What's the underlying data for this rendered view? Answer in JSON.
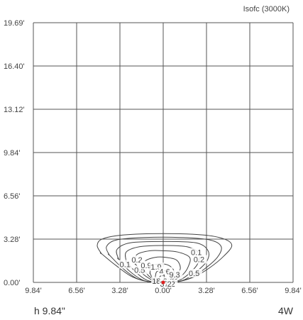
{
  "chart_data": {
    "type": "contour",
    "title": "Isofc (3000K)",
    "x_ticks": [
      "9.84'",
      "6.56'",
      "3.28'",
      "0.00'",
      "3.28'",
      "6.56'",
      "9.84'"
    ],
    "y_ticks": [
      "0.00'",
      "3.28'",
      "6.56'",
      "9.84'",
      "13.12'",
      "16.40'",
      "19.69'"
    ],
    "xlim": [
      -9.84,
      9.84
    ],
    "ylim": [
      0,
      19.69
    ],
    "grid": true,
    "contours": [
      {
        "label": "0.1",
        "level": 0.1,
        "points": [
          [
            -4.7,
            2.2
          ],
          [
            -5.0,
            2.8
          ],
          [
            -4.6,
            3.3
          ],
          [
            -3.0,
            3.6
          ],
          [
            0,
            3.7
          ],
          [
            3.0,
            3.6
          ],
          [
            4.6,
            3.3
          ],
          [
            5.2,
            2.8
          ],
          [
            4.6,
            2.0
          ],
          [
            3.5,
            1.1
          ],
          [
            2.3,
            0.4
          ],
          [
            0.8,
            0
          ],
          [
            -0.8,
            0
          ],
          [
            -2.3,
            0.4
          ],
          [
            -3.6,
            1.3
          ],
          [
            -4.7,
            2.2
          ]
        ]
      },
      {
        "label": "0.2",
        "level": 0.2,
        "points": [
          [
            -4.1,
            2.1
          ],
          [
            -4.3,
            2.7
          ],
          [
            -3.6,
            3.2
          ],
          [
            -1.5,
            3.4
          ],
          [
            1.5,
            3.4
          ],
          [
            3.6,
            3.2
          ],
          [
            4.4,
            2.7
          ],
          [
            4.1,
            1.9
          ],
          [
            3.1,
            1.0
          ],
          [
            2.0,
            0.3
          ],
          [
            0.7,
            0
          ],
          [
            -0.7,
            0
          ],
          [
            -2.0,
            0.3
          ],
          [
            -3.1,
            1.1
          ],
          [
            -4.1,
            2.1
          ]
        ]
      },
      {
        "label": "0.5",
        "level": 0.5,
        "points": [
          [
            -3.4,
            1.8
          ],
          [
            -3.5,
            2.5
          ],
          [
            -2.5,
            3.0
          ],
          [
            0,
            3.1
          ],
          [
            2.5,
            3.0
          ],
          [
            3.4,
            2.4
          ],
          [
            3.3,
            1.6
          ],
          [
            2.5,
            0.8
          ],
          [
            1.6,
            0.2
          ],
          [
            0.6,
            0
          ],
          [
            -0.6,
            0
          ],
          [
            -1.6,
            0.2
          ],
          [
            -2.6,
            0.9
          ],
          [
            -3.4,
            1.8
          ]
        ]
      },
      {
        "label": "0.9",
        "level": 0.9,
        "points": [
          [
            -2.8,
            1.6
          ],
          [
            -2.8,
            2.3
          ],
          [
            -1.8,
            2.7
          ],
          [
            0,
            2.8
          ],
          [
            1.8,
            2.7
          ],
          [
            2.7,
            2.2
          ],
          [
            2.6,
            1.4
          ],
          [
            2.0,
            0.7
          ],
          [
            1.3,
            0.2
          ],
          [
            0.5,
            0
          ],
          [
            -0.5,
            0
          ],
          [
            -1.3,
            0.2
          ],
          [
            -2.1,
            0.8
          ],
          [
            -2.8,
            1.6
          ]
        ]
      },
      {
        "label": "1.9",
        "level": 1.9,
        "points": [
          [
            -2.1,
            1.4
          ],
          [
            -2.0,
            2.1
          ],
          [
            -1.0,
            2.4
          ],
          [
            0,
            2.4
          ],
          [
            1.1,
            2.3
          ],
          [
            2.0,
            1.9
          ],
          [
            1.9,
            1.2
          ],
          [
            1.5,
            0.6
          ],
          [
            0.9,
            0.2
          ],
          [
            0.4,
            0
          ],
          [
            -0.4,
            0
          ],
          [
            -0.9,
            0.2
          ],
          [
            -1.6,
            0.7
          ],
          [
            -2.1,
            1.4
          ]
        ]
      },
      {
        "label": "4.6",
        "level": 4.6,
        "points": [
          [
            -1.5,
            1.0
          ],
          [
            -1.4,
            1.6
          ],
          [
            -0.6,
            1.9
          ],
          [
            0.2,
            1.9
          ],
          [
            1.0,
            1.7
          ],
          [
            1.3,
            1.1
          ],
          [
            1.0,
            0.5
          ],
          [
            0.6,
            0.15
          ],
          [
            0.25,
            0
          ],
          [
            -0.25,
            0
          ],
          [
            -0.6,
            0.15
          ],
          [
            -1.1,
            0.5
          ],
          [
            -1.5,
            1.0
          ]
        ]
      },
      {
        "label": "9.3",
        "level": 9.3,
        "points": [
          [
            -1.0,
            0.7
          ],
          [
            -0.9,
            1.2
          ],
          [
            -0.3,
            1.4
          ],
          [
            0.4,
            1.3
          ],
          [
            0.8,
            0.9
          ],
          [
            0.7,
            0.4
          ],
          [
            0.4,
            0.1
          ],
          [
            0.15,
            0
          ],
          [
            -0.15,
            0
          ],
          [
            -0.5,
            0.1
          ],
          [
            -0.8,
            0.3
          ],
          [
            -1.0,
            0.7
          ]
        ]
      },
      {
        "label": "18.6",
        "level": 18.6,
        "points": [
          [
            -0.6,
            0.4
          ],
          [
            -0.5,
            0.8
          ],
          [
            -0.1,
            0.9
          ],
          [
            0.3,
            0.8
          ],
          [
            0.45,
            0.45
          ],
          [
            0.35,
            0.15
          ],
          [
            0.1,
            0
          ],
          [
            -0.1,
            0
          ],
          [
            -0.35,
            0.1
          ],
          [
            -0.6,
            0.4
          ]
        ]
      },
      {
        "label": "37.2",
        "level": 37.2,
        "points": [
          [
            -0.3,
            0.2
          ],
          [
            -0.25,
            0.45
          ],
          [
            0,
            0.5
          ],
          [
            0.22,
            0.42
          ],
          [
            0.25,
            0.18
          ],
          [
            0.12,
            0
          ],
          [
            -0.12,
            0
          ],
          [
            -0.3,
            0.2
          ]
        ]
      }
    ],
    "contour_labels": [
      {
        "text": "0.1",
        "x": 2.1,
        "y": 2.28
      },
      {
        "text": "0.2",
        "x": 2.3,
        "y": 1.75
      },
      {
        "text": "0.1",
        "x": -3.3,
        "y": 1.38
      },
      {
        "text": "0.2",
        "x": -2.4,
        "y": 1.72
      },
      {
        "text": "0.5",
        "x": -2.2,
        "y": 0.95
      },
      {
        "text": "0.9",
        "x": -1.7,
        "y": 1.3
      },
      {
        "text": "1.9",
        "x": -0.95,
        "y": 1.18
      },
      {
        "text": "4.6",
        "x": -0.3,
        "y": 0.84
      },
      {
        "text": "9.3",
        "x": 0.45,
        "y": 0.6
      },
      {
        "text": "0.5",
        "x": 1.93,
        "y": 0.7
      },
      {
        "text": "1",
        "x": -0.1,
        "y": 0.4
      },
      {
        "text": "18.6",
        "x": -0.85,
        "y": 0.1
      },
      {
        "text": "37.2",
        "x": -0.25,
        "y": -0.1
      },
      {
        "text": "2",
        "x": 0.3,
        "y": -0.1
      }
    ],
    "source_point": {
      "x": 0,
      "y": 0,
      "color": "#e02020"
    }
  },
  "footer": {
    "left": "h 9.84\"",
    "right": "4W"
  }
}
